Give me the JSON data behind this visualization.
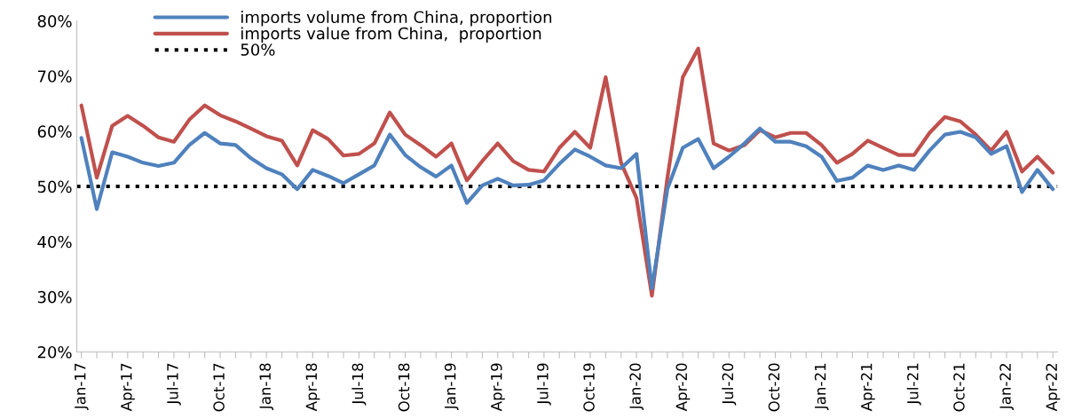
{
  "chart_data": {
    "type": "line",
    "categories": [
      "Jan-17",
      null,
      null,
      "Apr-17",
      null,
      null,
      "Jul-17",
      null,
      null,
      "Oct-17",
      null,
      null,
      "Jan-18",
      null,
      null,
      "Apr-18",
      null,
      null,
      "Jul-18",
      null,
      null,
      "Oct-18",
      null,
      null,
      "Jan-19",
      null,
      null,
      "Apr-19",
      null,
      null,
      "Jul-19",
      null,
      null,
      "Oct-19",
      null,
      null,
      "Jan-20",
      null,
      null,
      "Apr-20",
      null,
      null,
      "Jul-20",
      null,
      null,
      "Oct-20",
      null,
      null,
      "Jan-21",
      null,
      null,
      "Apr-21",
      null,
      null,
      "Jul-21",
      null,
      null,
      "Oct-21",
      null,
      null,
      "Jan-22",
      null,
      null,
      "Apr-22"
    ],
    "series": [
      {
        "name": "imports volume from China, proportion",
        "color": "#4f81bd",
        "values": [
          58.8,
          45.9,
          56.2,
          55.4,
          54.3,
          53.7,
          54.3,
          57.5,
          59.7,
          57.8,
          57.5,
          55.1,
          53.3,
          52.2,
          49.5,
          53.0,
          51.9,
          50.6,
          52.2,
          53.8,
          59.4,
          55.7,
          53.5,
          51.8,
          53.8,
          47.0,
          50.2,
          51.4,
          50.2,
          50.3,
          51.1,
          54.1,
          56.7,
          55.4,
          53.8,
          53.3,
          55.9,
          31.5,
          49.5,
          57.0,
          58.6,
          53.3,
          55.4,
          57.8,
          60.5,
          58.1,
          58.1,
          57.3,
          55.4,
          51.0,
          51.6,
          53.8,
          53.0,
          53.8,
          53.0,
          56.5,
          59.4,
          59.9,
          58.9,
          55.9,
          57.3,
          49.0,
          53.0,
          49.5
        ]
      },
      {
        "name": "imports value from China,  proportion",
        "color": "#c0504d",
        "values": [
          64.7,
          51.6,
          61.0,
          62.8,
          61.0,
          58.9,
          58.1,
          62.1,
          64.7,
          62.9,
          61.8,
          60.5,
          59.1,
          58.3,
          53.8,
          60.2,
          58.6,
          55.6,
          55.9,
          57.8,
          63.4,
          59.4,
          57.5,
          55.4,
          57.8,
          51.1,
          54.6,
          57.8,
          54.6,
          53.0,
          52.7,
          57.0,
          59.9,
          57.0,
          69.8,
          54.3,
          47.9,
          30.2,
          51.5,
          69.8,
          75.0,
          57.8,
          56.5,
          57.5,
          60.2,
          58.9,
          59.7,
          59.7,
          57.5,
          54.3,
          55.9,
          58.3,
          57.0,
          55.7,
          55.7,
          59.7,
          62.6,
          61.8,
          59.4,
          56.5,
          59.9,
          52.7,
          55.4,
          52.5
        ]
      }
    ],
    "ref_lines": [
      {
        "axis": "y",
        "value": 50,
        "label": "50%",
        "color": "#000000",
        "line_style": "dotted"
      }
    ],
    "ylim": [
      20,
      80
    ],
    "yticks": [
      {
        "value": 20,
        "label": "20%"
      },
      {
        "value": 30,
        "label": "30%"
      },
      {
        "value": 40,
        "label": "40%"
      },
      {
        "value": 50,
        "label": "50%"
      },
      {
        "value": 60,
        "label": "60%"
      },
      {
        "value": 70,
        "label": "70%"
      },
      {
        "value": 80,
        "label": "80%"
      }
    ],
    "grid": false,
    "legend": "top left",
    "line_style": "solid",
    "marker": "none"
  }
}
